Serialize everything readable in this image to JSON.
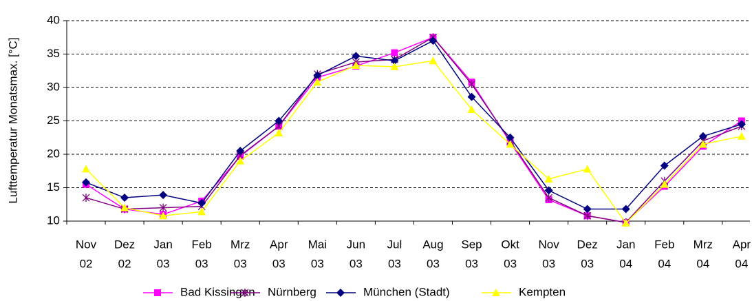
{
  "chart_data": {
    "type": "line",
    "y_axis_label": "Lufttemperatur Monatsmax. [°C]",
    "categories": [
      [
        "Nov",
        "02"
      ],
      [
        "Dez",
        "02"
      ],
      [
        "Jan",
        "03"
      ],
      [
        "Feb",
        "03"
      ],
      [
        "Mrz",
        "03"
      ],
      [
        "Apr",
        "03"
      ],
      [
        "Mai",
        "03"
      ],
      [
        "Jun",
        "03"
      ],
      [
        "Jul",
        "03"
      ],
      [
        "Aug",
        "03"
      ],
      [
        "Sep",
        "03"
      ],
      [
        "Okt",
        "03"
      ],
      [
        "Nov",
        "03"
      ],
      [
        "Dez",
        "03"
      ],
      [
        "Jan",
        "04"
      ],
      [
        "Feb",
        "04"
      ],
      [
        "Mrz",
        "04"
      ],
      [
        "Apr",
        "04"
      ]
    ],
    "series": [
      {
        "name": "Bad Kissingen",
        "color": "#ff00ff",
        "marker": "square",
        "values": [
          15.5,
          11.8,
          11,
          13,
          19.7,
          24.2,
          31.5,
          33.2,
          35.2,
          37.5,
          30.8,
          21.8,
          13.2,
          10.8,
          9.8,
          15.2,
          21.2,
          25
        ]
      },
      {
        "name": "Nürnberg",
        "color": "#800080",
        "marker": "star",
        "values": [
          13.5,
          11.8,
          12,
          12.2,
          19.8,
          24.2,
          32,
          33.8,
          34.2,
          37.5,
          30.5,
          22,
          13.5,
          10.8,
          9.8,
          16,
          22,
          24.2
        ]
      },
      {
        "name": "München (Stadt)",
        "color": "#000080",
        "marker": "diamond",
        "values": [
          15.8,
          13.5,
          13.9,
          12.7,
          20.5,
          25,
          31.8,
          34.7,
          34,
          37,
          28.6,
          22.5,
          14.6,
          11.8,
          11.8,
          18.3,
          22.7,
          24.5
        ]
      },
      {
        "name": "Kempten",
        "color": "#ffff00",
        "marker": "triangle",
        "values": [
          17.8,
          12,
          10.8,
          11.4,
          19,
          23.2,
          30.8,
          33.3,
          33.1,
          34,
          26.7,
          21.5,
          16.3,
          17.8,
          9.7,
          15.5,
          21.5,
          22.7
        ]
      }
    ],
    "ylim": [
      10,
      40
    ],
    "yticks": [
      10,
      15,
      20,
      25,
      30,
      35,
      40
    ],
    "grid": true,
    "legend": "bottom"
  }
}
